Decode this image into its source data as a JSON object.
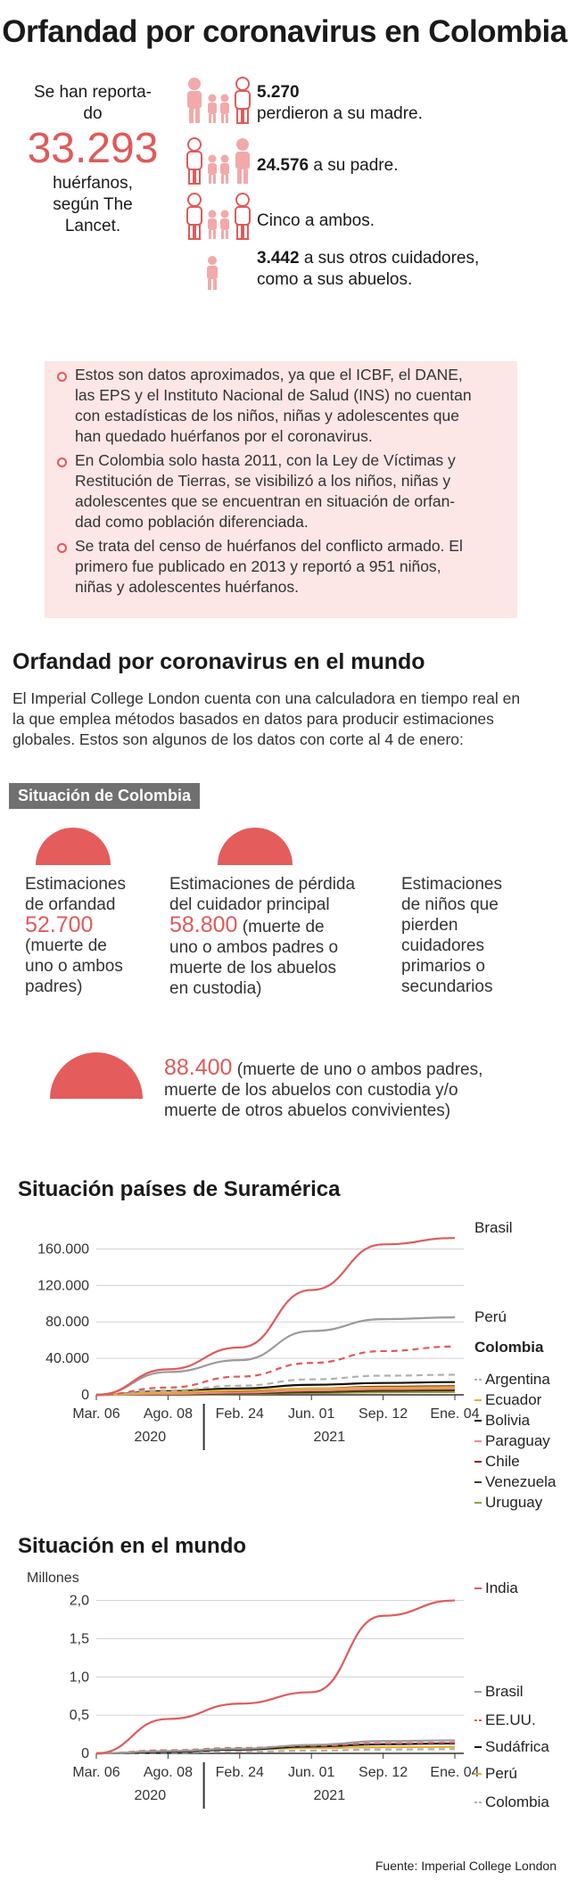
{
  "title": "Orfandad por coronavirus en Colombia",
  "intro": {
    "line1": "Se han reporta-",
    "line2": "do",
    "big_number": "33.293",
    "line3": "huérfanos,",
    "line4": "según The",
    "line5": "Lancet."
  },
  "stats": [
    {
      "value": "5.270",
      "text": "perdieron a su madre."
    },
    {
      "value": "24.576",
      "text": "a su padre."
    },
    {
      "value": "",
      "text": "Cinco a ambos."
    },
    {
      "value": "3.442",
      "text": "a sus otros cuidadores,",
      "text2": "como a sus abuelos."
    }
  ],
  "notes": [
    {
      "lines": [
        "Estos son datos aproximados, ya que el ICBF, el DANE,",
        "las EPS y el Instituto Nacional de Salud (INS) no cuentan",
        "con estadísticas de los niños, niñas y adolescentes que",
        "han quedado huérfanos por el coronavirus."
      ]
    },
    {
      "lines": [
        "En Colombia solo hasta 2011, con la Ley de Víctimas y",
        "Restitución de Tierras, se visibilizó a los niños, niñas y",
        "adolescentes que se encuentran en situación de orfan-",
        "dad como población diferenciada."
      ]
    },
    {
      "lines": [
        "Se trata del censo de huérfanos del conflicto armado. El",
        "primero fue publicado en 2013 y reportó a 951 niños,",
        "niñas y adolescentes huérfanos."
      ]
    }
  ],
  "world_section": {
    "heading": "Orfandad por coronavirus en el mundo",
    "lines": [
      "El Imperial College London cuenta con una calculadora en tiempo real en",
      "la que emplea métodos basados en datos para producir estimaciones",
      "globales. Estos son algunos de los datos con corte al 4 de enero:"
    ]
  },
  "badge": "Situación de Colombia",
  "estimates": [
    {
      "lines": [
        "Estimaciones",
        "de orfandad"
      ],
      "value": "52.700",
      "detail": [
        "(muerte de",
        "uno o ambos",
        "padres)"
      ]
    },
    {
      "lines": [
        "Estimaciones de pérdida",
        "del cuidador principal"
      ],
      "value": "58.800",
      "value_suffix": " (muerte de",
      "detail": [
        "uno o ambos padres o",
        "muerte de los abuelos",
        "en custodia)"
      ]
    },
    {
      "lines": [
        "Estimaciones",
        "de niños que",
        "pierden",
        "cuidadores",
        "primarios o",
        "secundarios"
      ]
    }
  ],
  "big_estimate": {
    "value": "88.400",
    "suffix": " (muerte de uno o ambos padres,",
    "lines": [
      "muerte de los abuelos con custodia y/o",
      "muerte de otros abuelos convivientes)"
    ]
  },
  "source": "Fuente: Imperial College London",
  "colors": {
    "accent": "#e05a5a",
    "pink_bg": "#fde6e6",
    "badge_bg": "#707070"
  },
  "chart_data": [
    {
      "type": "line",
      "title": "Situación países de Suramérica",
      "x_ticks": [
        "Mar. 06",
        "Ago. 08",
        "Feb. 24",
        "Jun. 01",
        "Sep. 12",
        "Ene. 04"
      ],
      "year_labels": [
        "2020",
        "2021"
      ],
      "y_ticks": [
        "160.000",
        "120.000",
        "80.000",
        "40.000",
        "0"
      ],
      "ylim": [
        0,
        180000
      ],
      "x": [
        "Mar. 06",
        "Ago. 08",
        "Feb. 24",
        "Jun. 01",
        "Sep. 12",
        "Ene. 04"
      ],
      "series": [
        {
          "name": "Brasil",
          "color": "#e05a5a",
          "dash": "solid",
          "values": [
            0,
            28000,
            52000,
            115000,
            165000,
            172000
          ]
        },
        {
          "name": "Perú",
          "color": "#9a9a9a",
          "dash": "solid",
          "values": [
            0,
            25000,
            38000,
            70000,
            83000,
            85000
          ]
        },
        {
          "name": "Colombia",
          "color": "#e05a5a",
          "dash": "dashed",
          "values": [
            0,
            8000,
            20000,
            35000,
            48000,
            53000
          ]
        },
        {
          "name": "Argentina",
          "color": "#b0b0b0",
          "dash": "dashed",
          "values": [
            0,
            5000,
            10000,
            17000,
            21000,
            22000
          ]
        },
        {
          "name": "Ecuador",
          "color": "#e0b030",
          "dash": "solid",
          "values": [
            0,
            3000,
            5000,
            7000,
            8000,
            8500
          ]
        },
        {
          "name": "Bolivia",
          "color": "#111111",
          "dash": "solid",
          "values": [
            0,
            4000,
            7000,
            11000,
            13000,
            14000
          ]
        },
        {
          "name": "Paraguay",
          "color": "#f08a8a",
          "dash": "solid",
          "values": [
            0,
            1000,
            2500,
            5000,
            6500,
            7000
          ]
        },
        {
          "name": "Chile",
          "color": "#8b1a1a",
          "dash": "solid",
          "values": [
            0,
            2000,
            4000,
            7000,
            9000,
            9500
          ]
        },
        {
          "name": "Venezuela",
          "color": "#4a3a10",
          "dash": "solid",
          "values": [
            0,
            500,
            1500,
            3000,
            4500,
            5000
          ]
        },
        {
          "name": "Uruguay",
          "color": "#9a9a40",
          "dash": "solid",
          "values": [
            0,
            200,
            800,
            2000,
            2800,
            3000
          ]
        }
      ]
    },
    {
      "type": "line",
      "title": "Situación en el mundo",
      "ylabel": "Millones",
      "x_ticks": [
        "Mar. 06",
        "Ago. 08",
        "Feb. 24",
        "Jun. 01",
        "Sep. 12",
        "Ene. 04"
      ],
      "year_labels": [
        "2020",
        "2021"
      ],
      "y_ticks": [
        "2,0",
        "1,5",
        "1,0",
        "0,5",
        "0"
      ],
      "ylim": [
        0,
        2.1
      ],
      "x": [
        "Mar. 06",
        "Ago. 08",
        "Feb. 24",
        "Jun. 01",
        "Sep. 12",
        "Ene. 04"
      ],
      "series": [
        {
          "name": "India",
          "color": "#e05a5a",
          "dash": "solid",
          "values": [
            0,
            0.45,
            0.65,
            0.8,
            1.8,
            2.0
          ]
        },
        {
          "name": "Brasil",
          "color": "#9a9a9a",
          "dash": "solid",
          "values": [
            0,
            0.03,
            0.06,
            0.11,
            0.16,
            0.17
          ]
        },
        {
          "name": "EE.UU.",
          "color": "#e05a5a",
          "dash": "dashed",
          "values": [
            0,
            0.04,
            0.07,
            0.1,
            0.13,
            0.14
          ]
        },
        {
          "name": "Sudáfrica",
          "color": "#111111",
          "dash": "solid",
          "values": [
            0,
            0.02,
            0.05,
            0.09,
            0.12,
            0.13
          ]
        },
        {
          "name": "Perú",
          "color": "#e0b030",
          "dash": "solid",
          "values": [
            0,
            0.03,
            0.05,
            0.07,
            0.08,
            0.085
          ]
        },
        {
          "name": "Colombia",
          "color": "#b0b0b0",
          "dash": "dashed",
          "values": [
            0,
            0.01,
            0.02,
            0.035,
            0.05,
            0.055
          ]
        }
      ]
    }
  ]
}
